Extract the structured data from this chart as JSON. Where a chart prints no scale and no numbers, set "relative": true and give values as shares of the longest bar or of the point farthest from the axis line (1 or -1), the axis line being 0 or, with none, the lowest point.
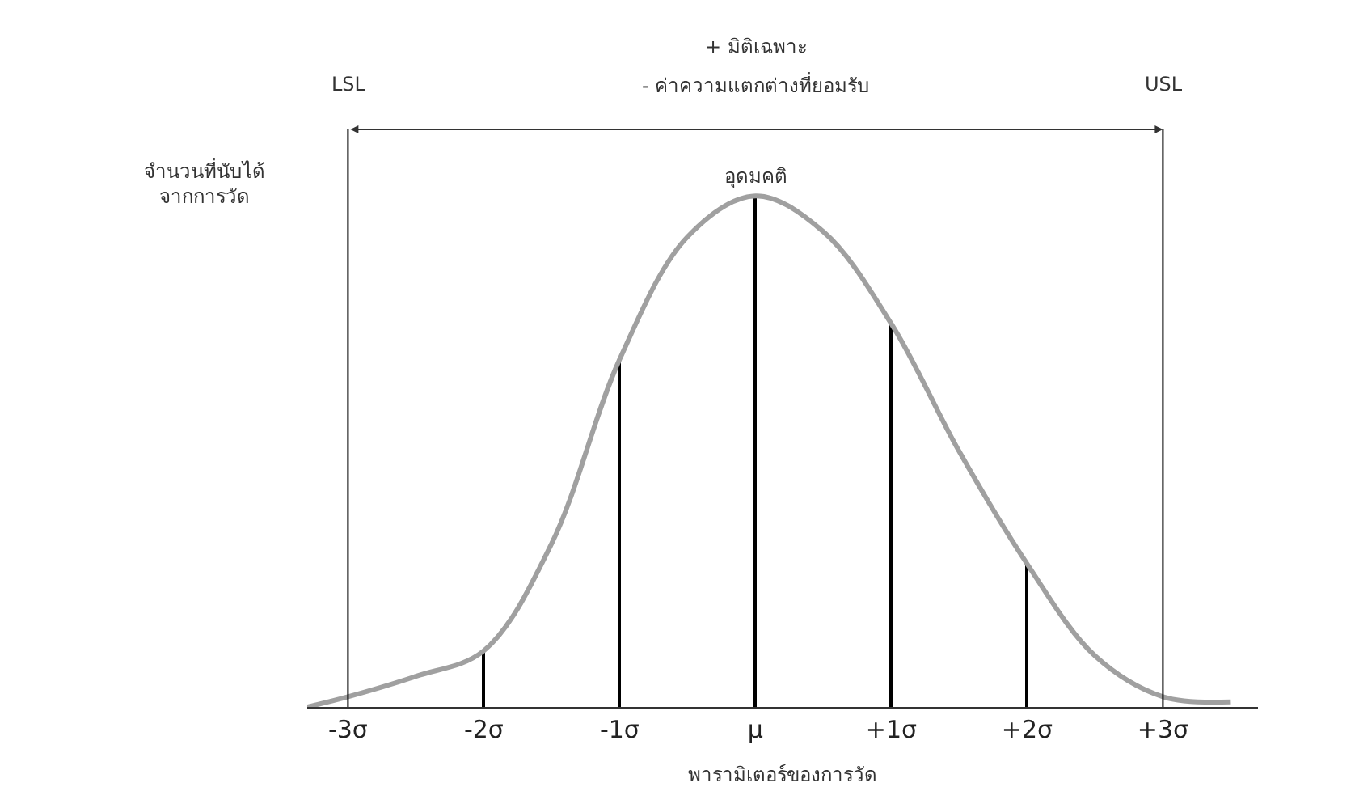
{
  "chart_data": {
    "type": "line",
    "relative": true,
    "xlabel": "พารามิเตอร์ของการวัด",
    "ylabel": "จำนวนที่นับได้\nจากการวัด",
    "x": [
      -3.3,
      -3.0,
      -2.5,
      -2.0,
      -1.5,
      -1.0,
      -0.5,
      0,
      0.5,
      1.0,
      1.5,
      2.0,
      2.5,
      3.0,
      3.5
    ],
    "series": [
      {
        "color": "#a0a0a0",
        "values": [
          0.0,
          0.02,
          0.06,
          0.11,
          0.32,
          0.68,
          0.92,
          1,
          0.93,
          0.75,
          0.5,
          0.28,
          0.1,
          0.02,
          0.01
        ]
      },
      {
        "type": "bar",
        "color": "#000000",
        "x": [
          -2,
          -1,
          0,
          1,
          2
        ],
        "values": [
          0.11,
          0.68,
          1,
          0.75,
          0.28
        ]
      }
    ],
    "xlim": [
      -3.3,
      3.7
    ],
    "xticks": [
      {
        "value": -3,
        "label": "-3σ"
      },
      {
        "value": -2,
        "label": "-2σ"
      },
      {
        "value": -1,
        "label": "-1σ"
      },
      {
        "value": 0,
        "label": "μ"
      },
      {
        "value": 1,
        "label": "+1σ"
      },
      {
        "value": 2,
        "label": "+2σ"
      },
      {
        "value": 3,
        "label": "+3σ"
      }
    ],
    "ref_lines": [
      {
        "axis": "x",
        "value": -3,
        "label": "LSL",
        "color": "#000000"
      },
      {
        "axis": "x",
        "value": 3,
        "label": "USL",
        "color": "#000000"
      }
    ],
    "annotations": [
      "+ มิติเฉพาะ",
      "- ค่าความแตกต่างที่ยอมรับ",
      {
        "text": "อุดมคติ",
        "x": 0,
        "y": 1
      }
    ],
    "legend": false,
    "marker": "none",
    "line_style": "solid"
  }
}
